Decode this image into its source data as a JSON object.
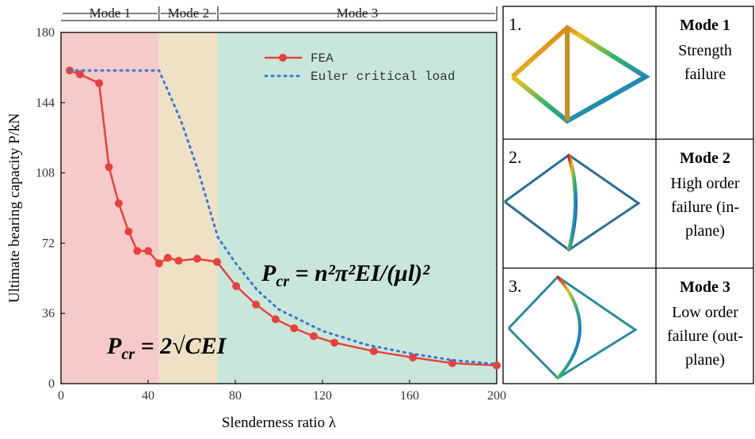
{
  "chart_data": {
    "type": "line",
    "ylabel": "Ultimate bearing capacity P/kN",
    "xlabel": "Slenderness ratio λ",
    "xlim": [
      0,
      200
    ],
    "xticks": [
      0,
      40,
      80,
      120,
      160,
      200
    ],
    "ylim": [
      0,
      180
    ],
    "yticks": [
      0,
      36,
      72,
      108,
      144,
      180
    ],
    "regions": [
      {
        "label": "Mode 1",
        "start": 0,
        "end": 45,
        "color": "#f6caca"
      },
      {
        "label": "Mode 2",
        "start": 45,
        "end": 72,
        "color": "#efe1c6"
      },
      {
        "label": "Mode 3",
        "start": 72,
        "end": 200,
        "color": "#c8e7da"
      }
    ],
    "legend": "upper right",
    "series": [
      {
        "name": "FEA",
        "color": "#e8413c",
        "style": "solid-markers",
        "x": [
          4,
          8.7,
          17.5,
          22,
          26.5,
          31,
          35,
          40,
          45,
          49,
          54,
          62.5,
          71.6,
          80.4,
          89.5,
          98.5,
          107,
          116,
          125.5,
          143.6,
          161.5,
          179.6,
          200
        ],
        "values": [
          160.5,
          158.5,
          154,
          111,
          92.4,
          78,
          68,
          68,
          61.6,
          64.5,
          63,
          64,
          62.4,
          50,
          40.5,
          33,
          28.4,
          24.3,
          21,
          16.6,
          13.4,
          10.5,
          9.3
        ]
      },
      {
        "name": "Euler critical load",
        "color": "#3b78d0",
        "style": "dotted",
        "x": [
          4,
          45,
          55,
          63,
          72,
          80,
          90,
          100,
          120,
          140,
          160,
          180,
          200
        ],
        "values": [
          160.5,
          160.5,
          135,
          109,
          75,
          62,
          48,
          38,
          27,
          20,
          15.5,
          12,
          10
        ]
      }
    ],
    "annotations": [
      {
        "base": "P",
        "sub": "cr",
        "rest": " = n²π²EI/(μl)²"
      },
      {
        "base": "P",
        "sub": "cr",
        "rest": " = 2√CEI"
      }
    ]
  },
  "panels": [
    {
      "number": "1.",
      "title": "Mode 1",
      "lines": [
        "Strength",
        "failure"
      ]
    },
    {
      "number": "2.",
      "title": "Mode 2",
      "lines": [
        "High order",
        "failure (in-",
        "plane)"
      ]
    },
    {
      "number": "3.",
      "title": "Mode 3",
      "lines": [
        "Low order",
        "failure (out-",
        "plane)"
      ]
    }
  ]
}
